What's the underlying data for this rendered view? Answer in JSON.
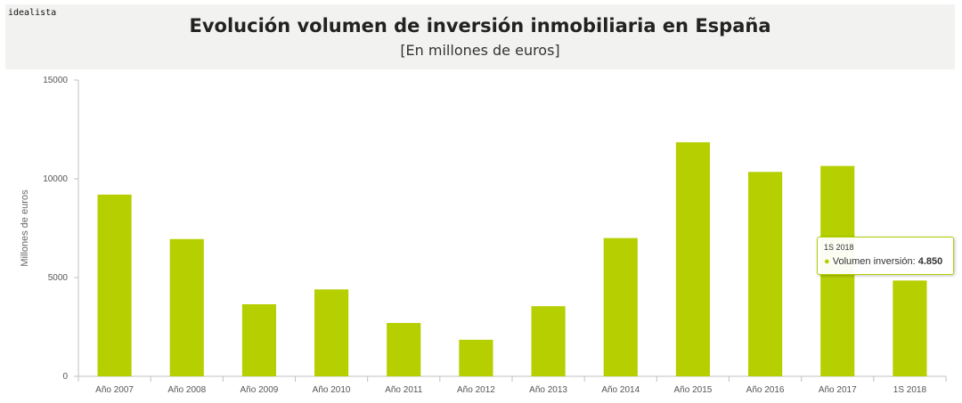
{
  "header": {
    "brand": "idealista",
    "title": "Evolución volumen de inversión inmobiliaria en España",
    "subtitle": "[En millones de euros]"
  },
  "tooltip": {
    "category": "1S 2018",
    "series_label": "Volumen inversión:",
    "value": "4.850"
  },
  "colors": {
    "bar": "#b5cf00",
    "axis": "#c0c0c0",
    "text": "#555555"
  },
  "chart_data": {
    "type": "bar",
    "categories": [
      "Año 2007",
      "Año 2008",
      "Año 2009",
      "Año 2010",
      "Año 2011",
      "Año 2012",
      "Año 2013",
      "Año 2014",
      "Año 2015",
      "Año 2016",
      "Año 2017",
      "1S 2018"
    ],
    "series": [
      {
        "name": "Volumen inversión",
        "values": [
          9200,
          6950,
          3650,
          4400,
          2700,
          1850,
          3550,
          7000,
          11850,
          10350,
          10650,
          4850
        ]
      }
    ],
    "ylabel": "Millones de euros",
    "ylim": [
      0,
      15000
    ],
    "yticks": [
      0,
      5000,
      10000,
      15000
    ],
    "grid": false
  }
}
